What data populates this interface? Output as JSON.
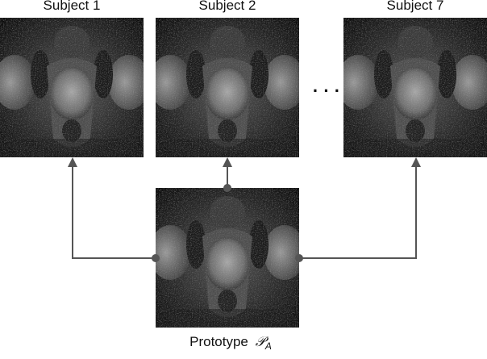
{
  "panels": [
    {
      "title": "Subject 1"
    },
    {
      "title": "Subject 2"
    },
    {
      "title": "Subject 7"
    }
  ],
  "ellipsis": "· · ·",
  "prototype": {
    "label": "Prototype",
    "symbol": "𝒫",
    "subscript": "A"
  }
}
